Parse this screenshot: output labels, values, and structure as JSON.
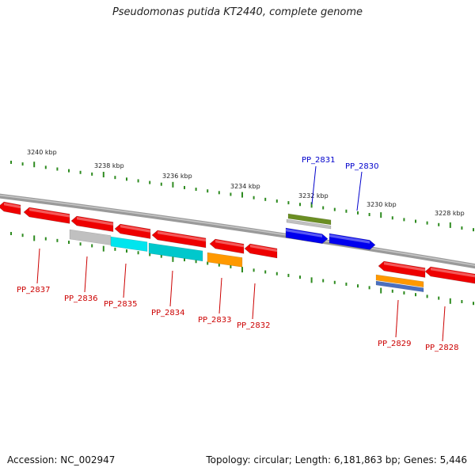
{
  "title": "Pseudomonas putida KT2440, complete genome",
  "footer": {
    "accession": "Accession: NC_002947",
    "stats": "Topology: circular; Length: 6,181,863 bp; Genes: 5,446"
  },
  "colors": {
    "backbone": "#808080",
    "tick": "#2e8b20",
    "kbp_label": "#222222",
    "label_red": "#cc0000",
    "label_blue": "#0000cc"
  },
  "kbp_labels": [
    "3240 kbp",
    "3238 kbp",
    "3236 kbp",
    "3234 kbp",
    "3232 kbp",
    "3230 kbp",
    "3228 kbp"
  ],
  "genes": [
    {
      "id": "PP_2837",
      "strand": "-",
      "color": "#ee0000",
      "label_color": "#cc0000"
    },
    {
      "id": "PP_2836",
      "strand": "-",
      "color": "#c0c0c0",
      "label_color": "#cc0000"
    },
    {
      "id": "PP_2835",
      "strand": "-",
      "color": "#00e5ee",
      "label_color": "#cc0000"
    },
    {
      "id": "PP_2834",
      "strand": "-",
      "color": "#00c8cc",
      "label_color": "#cc0000"
    },
    {
      "id": "PP_2833",
      "strand": "-",
      "color": "#ff9900",
      "label_color": "#cc0000"
    },
    {
      "id": "PP_2832",
      "strand": "-",
      "color": "#ee0000",
      "label_color": "#cc0000"
    },
    {
      "id": "PP_2831",
      "strand": "+",
      "color": "#0000ee",
      "label_color": "#0000cc"
    },
    {
      "id": "PP_2830",
      "strand": "+",
      "color": "#0000ee",
      "label_color": "#0000cc"
    },
    {
      "id": "PP_2829",
      "strand": "-",
      "color": "#ff9900",
      "label_color": "#cc0000"
    },
    {
      "id": "PP_2828",
      "strand": "-",
      "color": "#ee0000",
      "label_color": "#cc0000"
    }
  ]
}
